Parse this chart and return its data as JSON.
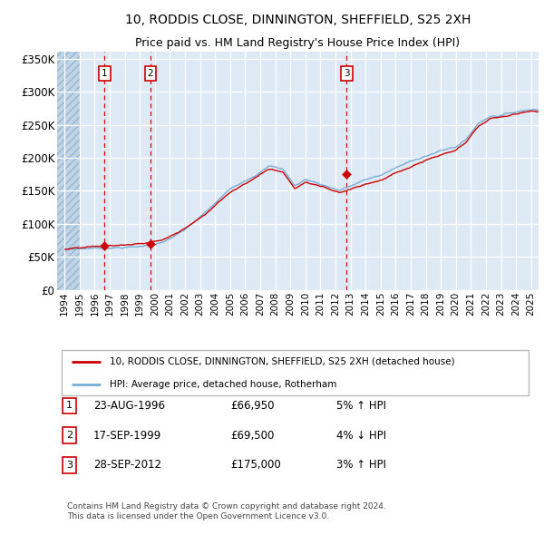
{
  "title1": "10, RODDIS CLOSE, DINNINGTON, SHEFFIELD, S25 2XH",
  "title2": "Price paid vs. HM Land Registry's House Price Index (HPI)",
  "line1_label": "10, RODDIS CLOSE, DINNINGTON, SHEFFIELD, S25 2XH (detached house)",
  "line2_label": "HPI: Average price, detached house, Rotherham",
  "line1_color": "#cc0000",
  "line2_color": "#7aadd4",
  "bg_color": "#ddeaf6",
  "hatch_region_end": 1995.0,
  "sale_points": [
    {
      "date": 1996.64,
      "price": 66950,
      "label": "1"
    },
    {
      "date": 1999.71,
      "price": 69500,
      "label": "2"
    },
    {
      "date": 2012.74,
      "price": 175000,
      "label": "3"
    }
  ],
  "vline_dates": [
    1996.64,
    1999.71,
    2012.74
  ],
  "table_rows": [
    [
      "1",
      "23-AUG-1996",
      "£66,950",
      "5% ↑ HPI"
    ],
    [
      "2",
      "17-SEP-1999",
      "£69,500",
      "4% ↓ HPI"
    ],
    [
      "3",
      "28-SEP-2012",
      "£175,000",
      "3% ↑ HPI"
    ]
  ],
  "footer": "Contains HM Land Registry data © Crown copyright and database right 2024.\nThis data is licensed under the Open Government Licence v3.0.",
  "ylim": [
    0,
    360000
  ],
  "xlim_left": 1993.5,
  "xlim_right": 2025.5,
  "yticks": [
    0,
    50000,
    100000,
    150000,
    200000,
    250000,
    300000,
    350000
  ],
  "ytick_labels": [
    "£0",
    "£50K",
    "£100K",
    "£150K",
    "£200K",
    "£250K",
    "£300K",
    "£350K"
  ],
  "xtick_years": [
    1994,
    1995,
    1996,
    1997,
    1998,
    1999,
    2000,
    2001,
    2002,
    2003,
    2004,
    2005,
    2006,
    2007,
    2008,
    2009,
    2010,
    2011,
    2012,
    2013,
    2014,
    2015,
    2016,
    2017,
    2018,
    2019,
    2020,
    2021,
    2022,
    2023,
    2024,
    2025
  ],
  "hpi_key_years": [
    1994.0,
    1995.5,
    1997.0,
    1999.0,
    2000.5,
    2002.0,
    2003.5,
    2005.0,
    2006.5,
    2007.6,
    2008.5,
    2009.3,
    2010.0,
    2010.8,
    2011.5,
    2012.3,
    2013.2,
    2014.0,
    2015.0,
    2016.0,
    2017.0,
    2018.0,
    2019.0,
    2020.0,
    2020.7,
    2021.5,
    2022.3,
    2023.0,
    2024.0,
    2025.0
  ],
  "hpi_key_vals": [
    62000,
    63500,
    65500,
    67500,
    74000,
    92000,
    120000,
    152000,
    174000,
    190000,
    186000,
    160000,
    170000,
    165000,
    160000,
    155000,
    163000,
    170000,
    177000,
    188000,
    197000,
    207000,
    214000,
    220000,
    232000,
    256000,
    268000,
    270000,
    275000,
    280000
  ],
  "noise_seed_hpi": 7,
  "noise_seed_prop": 13,
  "noise_scale_hpi": 380,
  "noise_scale_prop": 350
}
